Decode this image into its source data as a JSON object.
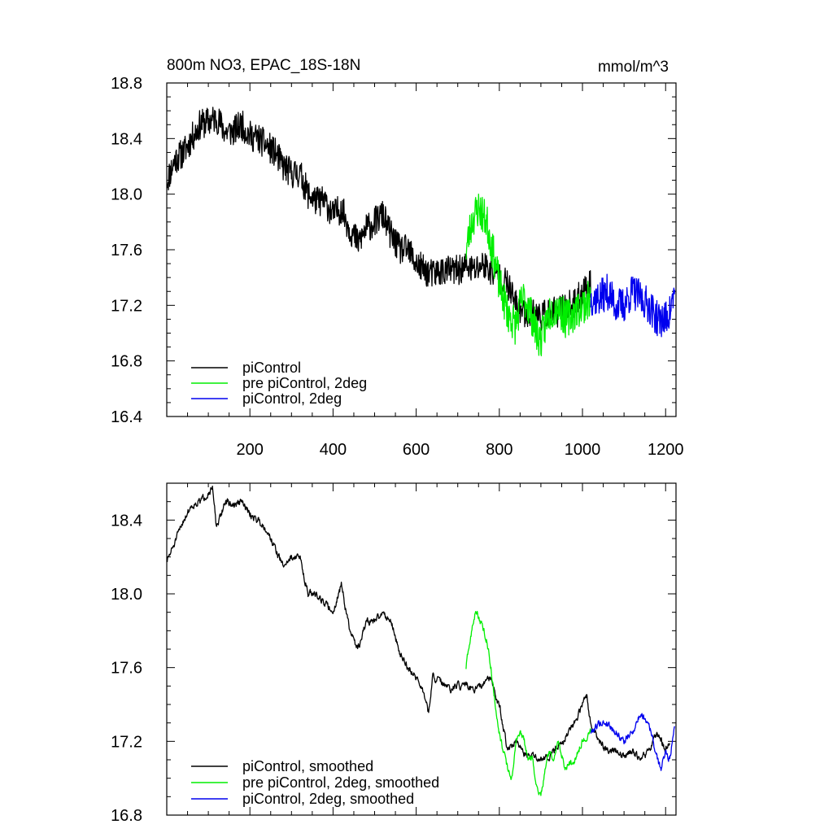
{
  "chart_data": [
    {
      "type": "line",
      "title": "800m NO3, EPAC_18S-18N",
      "units": "mmol/m^3",
      "xlim": [
        0,
        1225
      ],
      "ylim": [
        16.4,
        18.8
      ],
      "x_ticks": [
        200,
        400,
        600,
        800,
        1000,
        1200
      ],
      "y_ticks": [
        16.4,
        16.8,
        17.2,
        17.6,
        18.0,
        18.4,
        18.8
      ],
      "legend_position": "bottom-left",
      "series": [
        {
          "name": "piControl",
          "color": "#000000",
          "noise": 0.11,
          "seed": 11,
          "points": [
            [
              1,
              18.1
            ],
            [
              20,
              18.25
            ],
            [
              40,
              18.3
            ],
            [
              60,
              18.4
            ],
            [
              80,
              18.5
            ],
            [
              100,
              18.52
            ],
            [
              120,
              18.55
            ],
            [
              140,
              18.45
            ],
            [
              160,
              18.45
            ],
            [
              180,
              18.5
            ],
            [
              200,
              18.42
            ],
            [
              220,
              18.4
            ],
            [
              240,
              18.35
            ],
            [
              260,
              18.3
            ],
            [
              280,
              18.2
            ],
            [
              300,
              18.15
            ],
            [
              320,
              18.15
            ],
            [
              340,
              18.0
            ],
            [
              360,
              17.95
            ],
            [
              380,
              17.95
            ],
            [
              400,
              17.85
            ],
            [
              420,
              17.9
            ],
            [
              440,
              17.75
            ],
            [
              460,
              17.65
            ],
            [
              480,
              17.75
            ],
            [
              500,
              17.8
            ],
            [
              520,
              17.85
            ],
            [
              540,
              17.7
            ],
            [
              560,
              17.6
            ],
            [
              580,
              17.6
            ],
            [
              600,
              17.5
            ],
            [
              620,
              17.45
            ],
            [
              640,
              17.42
            ],
            [
              660,
              17.45
            ],
            [
              680,
              17.45
            ],
            [
              700,
              17.45
            ],
            [
              720,
              17.48
            ],
            [
              740,
              17.45
            ],
            [
              760,
              17.5
            ],
            [
              780,
              17.45
            ],
            [
              800,
              17.4
            ],
            [
              820,
              17.35
            ],
            [
              840,
              17.2
            ],
            [
              860,
              17.15
            ],
            [
              880,
              17.15
            ],
            [
              900,
              17.12
            ],
            [
              920,
              17.15
            ],
            [
              940,
              17.15
            ],
            [
              960,
              17.2
            ],
            [
              980,
              17.2
            ],
            [
              1000,
              17.3
            ],
            [
              1020,
              17.35
            ]
          ]
        },
        {
          "name": "pre piControl, 2deg",
          "color": "#00ee00",
          "noise": 0.14,
          "seed": 23,
          "points": [
            [
              720,
              17.6
            ],
            [
              730,
              17.75
            ],
            [
              740,
              17.85
            ],
            [
              750,
              17.9
            ],
            [
              760,
              17.85
            ],
            [
              770,
              17.8
            ],
            [
              780,
              17.65
            ],
            [
              790,
              17.5
            ],
            [
              800,
              17.35
            ],
            [
              810,
              17.25
            ],
            [
              820,
              17.15
            ],
            [
              830,
              17.1
            ],
            [
              840,
              17.05
            ],
            [
              850,
              17.2
            ],
            [
              860,
              17.25
            ],
            [
              870,
              17.2
            ],
            [
              880,
              17.1
            ],
            [
              890,
              17.0
            ],
            [
              900,
              16.95
            ],
            [
              910,
              17.05
            ],
            [
              920,
              17.15
            ],
            [
              940,
              17.2
            ],
            [
              960,
              17.1
            ],
            [
              980,
              17.15
            ],
            [
              1000,
              17.2
            ],
            [
              1020,
              17.25
            ]
          ]
        },
        {
          "name": "piControl, 2deg",
          "color": "#0000ee",
          "noise": 0.13,
          "seed": 37,
          "points": [
            [
              1020,
              17.25
            ],
            [
              1040,
              17.25
            ],
            [
              1060,
              17.3
            ],
            [
              1080,
              17.2
            ],
            [
              1100,
              17.2
            ],
            [
              1120,
              17.3
            ],
            [
              1140,
              17.25
            ],
            [
              1160,
              17.2
            ],
            [
              1180,
              17.1
            ],
            [
              1200,
              17.1
            ],
            [
              1210,
              17.15
            ],
            [
              1222,
              17.3
            ]
          ]
        }
      ]
    },
    {
      "type": "line",
      "xlim": [
        0,
        1225
      ],
      "ylim": [
        16.8,
        18.6
      ],
      "x_ticks": [
        200,
        400,
        600,
        800,
        1000,
        1200
      ],
      "y_ticks": [
        16.8,
        17.2,
        17.6,
        18.0,
        18.4
      ],
      "legend_position": "bottom-left",
      "series": [
        {
          "name": "piControl, smoothed",
          "color": "#000000",
          "noise": 0.035,
          "seed": 51,
          "points": [
            [
              1,
              18.18
            ],
            [
              20,
              18.28
            ],
            [
              40,
              18.4
            ],
            [
              60,
              18.48
            ],
            [
              80,
              18.5
            ],
            [
              100,
              18.55
            ],
            [
              110,
              18.57
            ],
            [
              120,
              18.35
            ],
            [
              140,
              18.5
            ],
            [
              160,
              18.48
            ],
            [
              180,
              18.5
            ],
            [
              200,
              18.43
            ],
            [
              220,
              18.4
            ],
            [
              240,
              18.35
            ],
            [
              260,
              18.25
            ],
            [
              280,
              18.15
            ],
            [
              300,
              18.2
            ],
            [
              320,
              18.2
            ],
            [
              340,
              18.0
            ],
            [
              360,
              18.0
            ],
            [
              380,
              17.95
            ],
            [
              400,
              17.9
            ],
            [
              420,
              18.05
            ],
            [
              440,
              17.8
            ],
            [
              460,
              17.7
            ],
            [
              480,
              17.85
            ],
            [
              500,
              17.85
            ],
            [
              520,
              17.9
            ],
            [
              540,
              17.85
            ],
            [
              560,
              17.68
            ],
            [
              580,
              17.6
            ],
            [
              600,
              17.55
            ],
            [
              620,
              17.45
            ],
            [
              630,
              17.35
            ],
            [
              640,
              17.55
            ],
            [
              660,
              17.52
            ],
            [
              680,
              17.48
            ],
            [
              700,
              17.5
            ],
            [
              720,
              17.5
            ],
            [
              740,
              17.48
            ],
            [
              760,
              17.5
            ],
            [
              780,
              17.55
            ],
            [
              790,
              17.45
            ],
            [
              800,
              17.4
            ],
            [
              820,
              17.15
            ],
            [
              840,
              17.2
            ],
            [
              860,
              17.12
            ],
            [
              880,
              17.12
            ],
            [
              900,
              17.1
            ],
            [
              920,
              17.12
            ],
            [
              940,
              17.18
            ],
            [
              960,
              17.22
            ],
            [
              980,
              17.3
            ],
            [
              1000,
              17.4
            ],
            [
              1010,
              17.44
            ],
            [
              1020,
              17.3
            ],
            [
              1040,
              17.2
            ],
            [
              1060,
              17.15
            ],
            [
              1080,
              17.15
            ],
            [
              1100,
              17.12
            ],
            [
              1120,
              17.15
            ],
            [
              1140,
              17.1
            ],
            [
              1160,
              17.15
            ],
            [
              1180,
              17.25
            ],
            [
              1200,
              17.15
            ],
            [
              1210,
              17.2
            ]
          ]
        },
        {
          "name": "pre piControl, 2deg, smoothed",
          "color": "#00ee00",
          "noise": 0.035,
          "seed": 63,
          "points": [
            [
              720,
              17.6
            ],
            [
              730,
              17.75
            ],
            [
              740,
              17.88
            ],
            [
              745,
              17.9
            ],
            [
              755,
              17.85
            ],
            [
              770,
              17.75
            ],
            [
              780,
              17.6
            ],
            [
              790,
              17.4
            ],
            [
              800,
              17.25
            ],
            [
              810,
              17.15
            ],
            [
              820,
              17.05
            ],
            [
              830,
              17.0
            ],
            [
              840,
              17.2
            ],
            [
              850,
              17.25
            ],
            [
              860,
              17.2
            ],
            [
              870,
              17.1
            ],
            [
              880,
              17.1
            ],
            [
              890,
              16.95
            ],
            [
              900,
              16.9
            ],
            [
              910,
              17.05
            ],
            [
              920,
              17.15
            ],
            [
              930,
              17.1
            ],
            [
              940,
              17.2
            ],
            [
              960,
              17.05
            ],
            [
              980,
              17.1
            ],
            [
              1000,
              17.2
            ],
            [
              1020,
              17.25
            ]
          ]
        },
        {
          "name": "piControl, 2deg, smoothed",
          "color": "#0000ee",
          "noise": 0.035,
          "seed": 79,
          "points": [
            [
              1020,
              17.25
            ],
            [
              1040,
              17.3
            ],
            [
              1060,
              17.3
            ],
            [
              1080,
              17.25
            ],
            [
              1100,
              17.2
            ],
            [
              1120,
              17.25
            ],
            [
              1140,
              17.35
            ],
            [
              1160,
              17.3
            ],
            [
              1170,
              17.2
            ],
            [
              1180,
              17.1
            ],
            [
              1190,
              17.05
            ],
            [
              1200,
              17.15
            ],
            [
              1210,
              17.1
            ],
            [
              1222,
              17.3
            ]
          ]
        }
      ]
    }
  ]
}
